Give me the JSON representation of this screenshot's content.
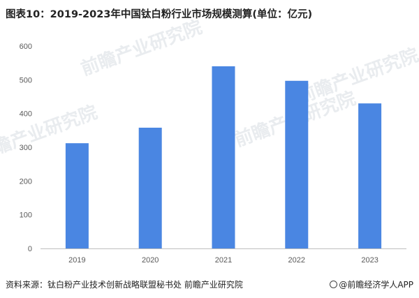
{
  "title": "图表10：2019-2023年中国钛白粉行业市场规模测算(单位：亿元)",
  "source": "资料来源：钛白粉产业技术创新战略联盟秘书处 前瞻产业研究院",
  "brand": "@前瞻经济学人APP",
  "watermark_text": "前瞻产业研究院",
  "colors": {
    "bar": "#4a86e2",
    "axis": "#bfbfbf",
    "text": "#595959"
  },
  "chart_data": {
    "type": "bar",
    "title": "图表10：2019-2023年中国钛白粉行业市场规模测算(单位：亿元)",
    "categories": [
      "2019",
      "2020",
      "2021",
      "2022",
      "2023"
    ],
    "values": [
      312,
      358,
      540,
      497,
      430
    ],
    "yticks": [
      0,
      100,
      200,
      300,
      400,
      500,
      600
    ],
    "ylim": [
      0,
      600
    ],
    "xlabel": "",
    "ylabel": "",
    "grid": false,
    "legend": "none"
  }
}
